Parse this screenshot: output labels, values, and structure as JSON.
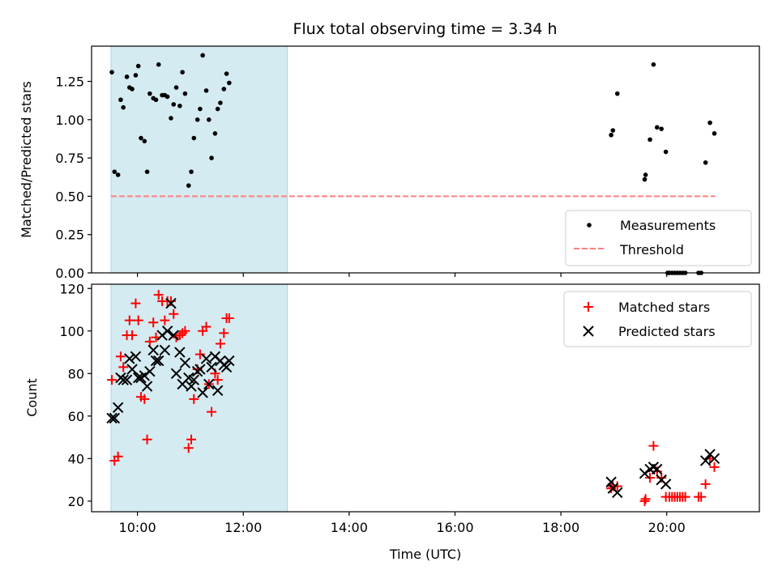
{
  "title": "Flux total observing time = 3.34 h",
  "colors": {
    "measurement": "#000000",
    "threshold": "#ff7f7f",
    "matched": "#ff0000",
    "predicted": "#000000",
    "span_fill": "#d4ebf1",
    "span_edge": "#a6d8e3"
  },
  "chart_data": [
    {
      "type": "scatter",
      "panel": "top",
      "ylabel": "Matched/Predicted stars",
      "xlim": [
        "09:08",
        "21:45"
      ],
      "ylim": [
        0,
        1.48
      ],
      "yticks": [
        "0.00",
        "0.25",
        "0.50",
        "0.75",
        "1.00",
        "1.25"
      ],
      "x_tick_labels_shown": false,
      "grid": false,
      "legend": {
        "placement": "bottom-right",
        "entries": [
          "Measurements",
          "Threshold"
        ]
      },
      "shaded_span": [
        "09:30",
        "12:50"
      ],
      "threshold": {
        "name": "Threshold",
        "y": 0.5,
        "x_range": [
          "09:30",
          "20:55"
        ]
      },
      "series": [
        {
          "name": "Measurements",
          "points": [
            [
              "09:31",
              1.31
            ],
            [
              "09:34",
              0.66
            ],
            [
              "09:38",
              0.64
            ],
            [
              "09:41",
              1.13
            ],
            [
              "09:44",
              1.08
            ],
            [
              "09:48",
              1.28
            ],
            [
              "09:51",
              1.21
            ],
            [
              "09:54",
              1.2
            ],
            [
              "09:58",
              1.29
            ],
            [
              "10:01",
              1.35
            ],
            [
              "10:04",
              0.88
            ],
            [
              "10:08",
              0.86
            ],
            [
              "10:11",
              0.66
            ],
            [
              "10:14",
              1.17
            ],
            [
              "10:18",
              1.14
            ],
            [
              "10:21",
              1.13
            ],
            [
              "10:24",
              1.36
            ],
            [
              "10:28",
              1.16
            ],
            [
              "10:31",
              1.16
            ],
            [
              "10:34",
              1.15
            ],
            [
              "10:38",
              1.01
            ],
            [
              "10:41",
              1.1
            ],
            [
              "10:44",
              1.21
            ],
            [
              "10:48",
              1.09
            ],
            [
              "10:51",
              1.31
            ],
            [
              "10:54",
              1.17
            ],
            [
              "10:58",
              0.57
            ],
            [
              "11:01",
              0.66
            ],
            [
              "11:04",
              0.88
            ],
            [
              "11:08",
              1.0
            ],
            [
              "11:11",
              1.07
            ],
            [
              "11:14",
              1.42
            ],
            [
              "11:18",
              1.19
            ],
            [
              "11:21",
              1.0
            ],
            [
              "11:24",
              0.75
            ],
            [
              "11:28",
              0.91
            ],
            [
              "11:31",
              1.07
            ],
            [
              "11:34",
              1.11
            ],
            [
              "11:38",
              1.2
            ],
            [
              "11:41",
              1.3
            ],
            [
              "11:44",
              1.24
            ],
            [
              "18:57",
              0.9
            ],
            [
              "18:59",
              0.93
            ],
            [
              "19:04",
              1.17
            ],
            [
              "19:35",
              0.61
            ],
            [
              "19:36",
              0.64
            ],
            [
              "19:41",
              0.87
            ],
            [
              "19:45",
              1.36
            ],
            [
              "19:49",
              0.95
            ],
            [
              "19:54",
              0.94
            ],
            [
              "19:59",
              0.79
            ],
            [
              "20:01",
              0.0
            ],
            [
              "20:03",
              0.0
            ],
            [
              "20:06",
              0.0
            ],
            [
              "20:09",
              0.0
            ],
            [
              "20:12",
              0.0
            ],
            [
              "20:15",
              0.0
            ],
            [
              "20:18",
              0.0
            ],
            [
              "20:21",
              0.0
            ],
            [
              "20:36",
              0.0
            ],
            [
              "20:39",
              0.0
            ],
            [
              "20:44",
              0.72
            ],
            [
              "20:49",
              0.98
            ],
            [
              "20:54",
              0.91
            ]
          ]
        }
      ]
    },
    {
      "type": "scatter",
      "panel": "bottom",
      "xlabel": "Time (UTC)",
      "ylabel": "Count",
      "xlim": [
        "09:08",
        "21:45"
      ],
      "ylim": [
        15,
        122
      ],
      "xticks": [
        "10:00",
        "12:00",
        "14:00",
        "16:00",
        "18:00",
        "20:00"
      ],
      "yticks": [
        "20",
        "40",
        "60",
        "80",
        "100",
        "120"
      ],
      "grid": false,
      "legend": {
        "placement": "top-right",
        "entries": [
          "Matched stars",
          "Predicted stars"
        ]
      },
      "shaded_span": [
        "09:30",
        "12:50"
      ],
      "series": [
        {
          "name": "Matched stars",
          "marker": "plus",
          "points": [
            [
              "09:31",
              77
            ],
            [
              "09:34",
              39
            ],
            [
              "09:38",
              41
            ],
            [
              "09:41",
              88
            ],
            [
              "09:44",
              83
            ],
            [
              "09:48",
              98
            ],
            [
              "09:51",
              105
            ],
            [
              "09:54",
              98
            ],
            [
              "09:58",
              113
            ],
            [
              "10:01",
              105
            ],
            [
              "10:04",
              69
            ],
            [
              "10:08",
              68
            ],
            [
              "10:11",
              49
            ],
            [
              "10:14",
              95
            ],
            [
              "10:18",
              104
            ],
            [
              "10:21",
              97
            ],
            [
              "10:24",
              117
            ],
            [
              "10:28",
              114
            ],
            [
              "10:31",
              105
            ],
            [
              "10:34",
              114
            ],
            [
              "10:38",
              114
            ],
            [
              "10:41",
              108
            ],
            [
              "10:44",
              97
            ],
            [
              "10:48",
              98
            ],
            [
              "10:51",
              99
            ],
            [
              "10:54",
              100
            ],
            [
              "10:58",
              45
            ],
            [
              "11:01",
              49
            ],
            [
              "11:04",
              68
            ],
            [
              "11:08",
              82
            ],
            [
              "11:11",
              89
            ],
            [
              "11:14",
              100
            ],
            [
              "11:18",
              102
            ],
            [
              "11:21",
              75
            ],
            [
              "11:24",
              62
            ],
            [
              "11:28",
              80
            ],
            [
              "11:31",
              77
            ],
            [
              "11:34",
              94
            ],
            [
              "11:38",
              99
            ],
            [
              "11:41",
              106
            ],
            [
              "11:44",
              106
            ],
            [
              "18:57",
              26
            ],
            [
              "18:59",
              27
            ],
            [
              "19:04",
              27
            ],
            [
              "19:35",
              20
            ],
            [
              "19:36",
              21
            ],
            [
              "19:41",
              31
            ],
            [
              "19:45",
              46
            ],
            [
              "19:49",
              34
            ],
            [
              "19:54",
              31
            ],
            [
              "19:59",
              22
            ],
            [
              "20:03",
              22
            ],
            [
              "20:06",
              22
            ],
            [
              "20:09",
              22
            ],
            [
              "20:12",
              22
            ],
            [
              "20:15",
              22
            ],
            [
              "20:18",
              22
            ],
            [
              "20:21",
              22
            ],
            [
              "20:36",
              22
            ],
            [
              "20:39",
              22
            ],
            [
              "20:44",
              28
            ],
            [
              "20:49",
              40
            ],
            [
              "20:54",
              36
            ]
          ]
        },
        {
          "name": "Predicted stars",
          "marker": "x",
          "points": [
            [
              "09:31",
              59
            ],
            [
              "09:34",
              59
            ],
            [
              "09:38",
              64
            ],
            [
              "09:41",
              78
            ],
            [
              "09:44",
              77
            ],
            [
              "09:48",
              77
            ],
            [
              "09:51",
              87
            ],
            [
              "09:54",
              82
            ],
            [
              "09:58",
              88
            ],
            [
              "10:01",
              78
            ],
            [
              "10:04",
              78
            ],
            [
              "10:08",
              79
            ],
            [
              "10:11",
              74
            ],
            [
              "10:14",
              81
            ],
            [
              "10:18",
              91
            ],
            [
              "10:21",
              86
            ],
            [
              "10:24",
              86
            ],
            [
              "10:28",
              98
            ],
            [
              "10:31",
              91
            ],
            [
              "10:34",
              100
            ],
            [
              "10:38",
              113
            ],
            [
              "10:41",
              98
            ],
            [
              "10:44",
              80
            ],
            [
              "10:48",
              90
            ],
            [
              "10:51",
              75
            ],
            [
              "10:54",
              85
            ],
            [
              "10:58",
              78
            ],
            [
              "11:01",
              74
            ],
            [
              "11:04",
              77
            ],
            [
              "11:08",
              81
            ],
            [
              "11:11",
              82
            ],
            [
              "11:14",
              71
            ],
            [
              "11:18",
              87
            ],
            [
              "11:21",
              75
            ],
            [
              "11:24",
              83
            ],
            [
              "11:28",
              88
            ],
            [
              "11:31",
              72
            ],
            [
              "11:34",
              86
            ],
            [
              "11:38",
              84
            ],
            [
              "11:41",
              83
            ],
            [
              "11:44",
              86
            ],
            [
              "18:57",
              29
            ],
            [
              "18:59",
              26
            ],
            [
              "19:04",
              24
            ],
            [
              "19:35",
              33
            ],
            [
              "19:41",
              35
            ],
            [
              "19:45",
              36
            ],
            [
              "19:49",
              35
            ],
            [
              "19:54",
              30
            ],
            [
              "19:59",
              28
            ],
            [
              "20:44",
              39
            ],
            [
              "20:49",
              42
            ],
            [
              "20:54",
              40
            ]
          ]
        }
      ]
    }
  ]
}
